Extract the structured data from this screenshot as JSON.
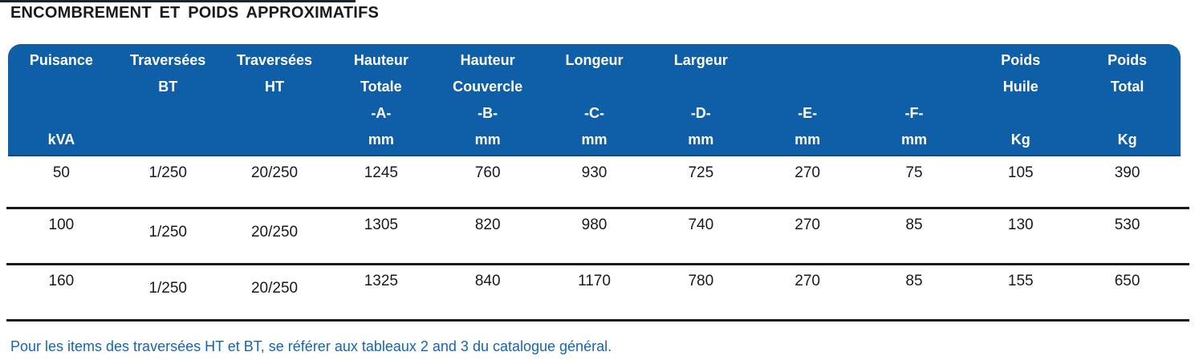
{
  "page": {
    "title": "ENCOMBREMENT ET POIDS APPROXIMATIFS",
    "footnote": "Pour les items des traversées HT et BT, se référer aux tableaux 2 and 3 du catalogue général."
  },
  "colors": {
    "header_bg": "#0e5ea8",
    "header_text": "#ffffff",
    "body_text": "#1a1a1a",
    "separator": "#1a1a1a",
    "footnote_text": "#1565b4",
    "top_rule": "#1b2531"
  },
  "table": {
    "columns": [
      {
        "name": "puissance",
        "lines": [
          "Puisance",
          "",
          "",
          "kVA"
        ]
      },
      {
        "name": "traversees-bt",
        "lines": [
          "Traversées",
          "BT",
          "",
          ""
        ]
      },
      {
        "name": "traversees-ht",
        "lines": [
          "Traversées",
          "HT",
          "",
          ""
        ]
      },
      {
        "name": "hauteur-totale",
        "lines": [
          "Hauteur",
          "Totale",
          "-A-",
          "mm"
        ]
      },
      {
        "name": "hauteur-couvercle",
        "lines": [
          "Hauteur",
          "Couvercle",
          "-B-",
          "mm"
        ]
      },
      {
        "name": "longeur",
        "lines": [
          "Longeur",
          "",
          "-C-",
          "mm"
        ]
      },
      {
        "name": "largeur",
        "lines": [
          "Largeur",
          "",
          "-D-",
          "mm"
        ]
      },
      {
        "name": "dim-e",
        "lines": [
          "",
          "",
          "-E-",
          "mm"
        ]
      },
      {
        "name": "dim-f",
        "lines": [
          "",
          "",
          "-F-",
          "mm"
        ]
      },
      {
        "name": "poids-huile",
        "lines": [
          "Poids",
          "Huile",
          "",
          "Kg"
        ]
      },
      {
        "name": "poids-total",
        "lines": [
          "Poids",
          "Total",
          "",
          "Kg"
        ]
      }
    ],
    "rows": [
      [
        "50",
        "1/250",
        "20/250",
        "1245",
        "760",
        "930",
        "725",
        "270",
        "75",
        "105",
        "390"
      ],
      [
        "100",
        "1/250",
        "20/250",
        "1305",
        "820",
        "980",
        "740",
        "270",
        "85",
        "130",
        "530"
      ],
      [
        "160",
        "1/250",
        "20/250",
        "1325",
        "840",
        "1170",
        "780",
        "270",
        "85",
        "155",
        "650"
      ]
    ]
  }
}
